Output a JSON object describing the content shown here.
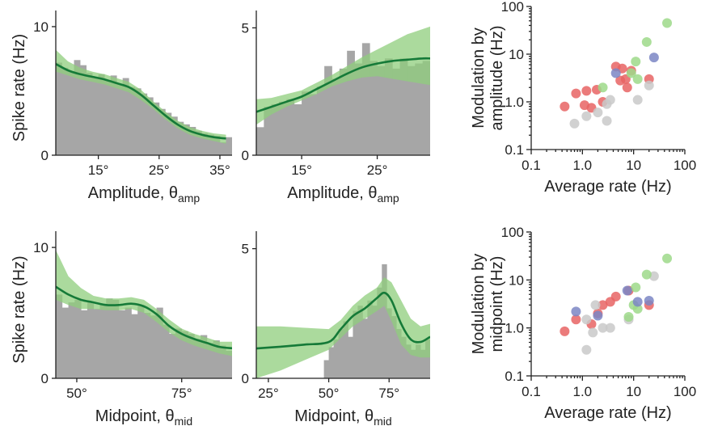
{
  "colors": {
    "histogram": "#a6a6a6",
    "band": "#8fce7c",
    "fit": "#157a38",
    "red": "#e86464",
    "green": "#9ed98a",
    "blue": "#7b86c4",
    "gray": "#c9c9c9"
  },
  "chart_data": [
    {
      "id": "amp-left",
      "type": "bar+line",
      "xlabel": "Amplitude, θ",
      "xlabel_sub": "amp",
      "ylabel": "Spike rate (Hz)",
      "xlim": [
        8,
        37
      ],
      "ylim": [
        0,
        10.5
      ],
      "xticks": [
        15,
        25,
        35
      ],
      "xtick_labels": [
        "15°",
        "25°",
        "35°"
      ],
      "yticks": [
        0,
        10
      ],
      "ytick_labels": [
        "0",
        "10"
      ],
      "hist_x": [
        8.5,
        9.5,
        10.5,
        11.5,
        12.5,
        13.5,
        14.5,
        15.5,
        16.5,
        17.5,
        18.5,
        19.5,
        20.5,
        21.5,
        22.5,
        23.5,
        24.5,
        25.5,
        26.5,
        27.5,
        28.5,
        29.5,
        30.5,
        31.5,
        32.5,
        33.5,
        34.5,
        35.5,
        36.5
      ],
      "hist_y": [
        7.2,
        6.8,
        6.5,
        7.4,
        7.0,
        6.4,
        6.1,
        6.3,
        5.8,
        6.2,
        5.5,
        6.0,
        5.3,
        5.2,
        4.8,
        4.5,
        4.1,
        3.6,
        3.3,
        3.0,
        2.6,
        2.4,
        2.2,
        1.9,
        1.7,
        1.6,
        1.5,
        1.0,
        1.4
      ],
      "fit_x": [
        8,
        10,
        12,
        14,
        16,
        18,
        20,
        22,
        24,
        26,
        28,
        30,
        32,
        34,
        36
      ],
      "fit_y": [
        7.1,
        6.6,
        6.3,
        6.1,
        5.9,
        5.6,
        5.3,
        4.7,
        3.9,
        3.1,
        2.4,
        1.9,
        1.6,
        1.4,
        1.3
      ],
      "band_lo": [
        6.5,
        6.2,
        5.9,
        5.7,
        5.5,
        5.2,
        4.9,
        4.3,
        3.6,
        2.8,
        2.1,
        1.6,
        1.3,
        1.1,
        0.9
      ],
      "band_hi": [
        8.2,
        7.3,
        6.8,
        6.5,
        6.3,
        6.0,
        5.7,
        5.1,
        4.2,
        3.4,
        2.7,
        2.2,
        1.9,
        1.7,
        1.6
      ]
    },
    {
      "id": "amp-right",
      "type": "bar+line",
      "xlabel": "Amplitude, θ",
      "xlabel_sub": "amp",
      "ylabel": "",
      "xlim": [
        9,
        32
      ],
      "ylim": [
        0,
        5.3
      ],
      "xticks": [
        15,
        25
      ],
      "xtick_labels": [
        "15°",
        "25°"
      ],
      "yticks": [
        0,
        5
      ],
      "ytick_labels": [
        "0",
        "5"
      ],
      "hist_x": [
        9.5,
        10.5,
        11.5,
        12.5,
        13.5,
        14.5,
        15.5,
        16.5,
        17.5,
        18.5,
        19.5,
        20.5,
        21.5,
        22.5,
        23.5,
        24.5,
        25.5,
        26.5,
        27.5,
        28.5,
        29.5,
        30.5,
        31.5
      ],
      "hist_y": [
        1.1,
        1.9,
        2.0,
        2.1,
        2.2,
        2.0,
        2.5,
        2.4,
        2.7,
        3.5,
        3.0,
        3.4,
        4.1,
        3.6,
        4.4,
        3.7,
        3.5,
        3.8,
        3.4,
        3.8,
        3.5,
        3.6,
        3.7
      ],
      "fit_x": [
        9,
        11,
        13,
        15,
        17,
        19,
        21,
        23,
        25,
        27,
        29,
        31,
        32
      ],
      "fit_y": [
        1.7,
        1.9,
        2.1,
        2.3,
        2.6,
        2.9,
        3.2,
        3.45,
        3.6,
        3.7,
        3.75,
        3.8,
        3.8
      ],
      "band_lo": [
        1.2,
        1.6,
        1.9,
        2.15,
        2.4,
        2.7,
        2.9,
        3.05,
        3.1,
        3.0,
        2.9,
        2.8,
        2.75
      ],
      "band_hi": [
        2.2,
        2.25,
        2.4,
        2.55,
        2.85,
        3.15,
        3.5,
        3.85,
        4.15,
        4.45,
        4.75,
        4.95,
        5.05
      ]
    },
    {
      "id": "scatter-amp",
      "type": "scatter",
      "scale": "log",
      "xlabel": "Average rate (Hz)",
      "ylabel": "Modulation by",
      "ylabel2": "amplitude (Hz)",
      "xlim": [
        0.1,
        100
      ],
      "ylim": [
        0.1,
        100
      ],
      "ticks": [
        0.1,
        1,
        10,
        100
      ],
      "xtick_labels": [
        "0.1",
        "1.0",
        "10",
        "100"
      ],
      "ytick_labels": [
        "0.1",
        "1.0",
        "10",
        "100"
      ],
      "points": [
        {
          "x": 0.45,
          "y": 0.8,
          "c": "red"
        },
        {
          "x": 0.75,
          "y": 1.5,
          "c": "red"
        },
        {
          "x": 1.1,
          "y": 0.85,
          "c": "red"
        },
        {
          "x": 1.2,
          "y": 1.7,
          "c": "red"
        },
        {
          "x": 1.5,
          "y": 0.75,
          "c": "red"
        },
        {
          "x": 1.9,
          "y": 1.8,
          "c": "red"
        },
        {
          "x": 2.5,
          "y": 1.0,
          "c": "red"
        },
        {
          "x": 4.5,
          "y": 5.5,
          "c": "red"
        },
        {
          "x": 5.5,
          "y": 2.8,
          "c": "red"
        },
        {
          "x": 6.0,
          "y": 5.0,
          "c": "red"
        },
        {
          "x": 7.0,
          "y": 3.0,
          "c": "red"
        },
        {
          "x": 7.5,
          "y": 2.0,
          "c": "red"
        },
        {
          "x": 9.0,
          "y": 4.5,
          "c": "red"
        },
        {
          "x": 20.0,
          "y": 3.0,
          "c": "red"
        },
        {
          "x": 0.7,
          "y": 0.35,
          "c": "gray"
        },
        {
          "x": 1.2,
          "y": 0.5,
          "c": "gray"
        },
        {
          "x": 2.0,
          "y": 0.6,
          "c": "gray"
        },
        {
          "x": 3.0,
          "y": 0.9,
          "c": "gray"
        },
        {
          "x": 3.5,
          "y": 1.1,
          "c": "gray"
        },
        {
          "x": 3.0,
          "y": 0.4,
          "c": "gray"
        },
        {
          "x": 12.0,
          "y": 1.1,
          "c": "gray"
        },
        {
          "x": 20.0,
          "y": 2.2,
          "c": "gray"
        },
        {
          "x": 2.5,
          "y": 2.0,
          "c": "green"
        },
        {
          "x": 9.0,
          "y": 4.0,
          "c": "green"
        },
        {
          "x": 11.0,
          "y": 7.0,
          "c": "green"
        },
        {
          "x": 12.0,
          "y": 3.0,
          "c": "green"
        },
        {
          "x": 18.0,
          "y": 18.0,
          "c": "green"
        },
        {
          "x": 45.0,
          "y": 45.0,
          "c": "green"
        },
        {
          "x": 4.5,
          "y": 4.0,
          "c": "blue"
        },
        {
          "x": 25.0,
          "y": 8.5,
          "c": "blue"
        }
      ]
    },
    {
      "id": "mid-left",
      "type": "bar+line",
      "xlabel": "Midpoint, θ",
      "xlabel_sub": "mid",
      "ylabel": "Spike rate (Hz)",
      "xlim": [
        45,
        87
      ],
      "ylim": [
        0,
        10.5
      ],
      "xticks": [
        50,
        75
      ],
      "xtick_labels": [
        "50°",
        "75°"
      ],
      "yticks": [
        0,
        10
      ],
      "ytick_labels": [
        "0",
        "10"
      ],
      "hist_x": [
        45.75,
        47.25,
        48.75,
        50.25,
        51.75,
        53.25,
        54.75,
        56.25,
        57.75,
        59.25,
        60.75,
        62.25,
        63.75,
        65.25,
        66.75,
        68.25,
        69.75,
        71.25,
        72.75,
        74.25,
        75.75,
        77.25,
        78.75,
        80.25,
        81.75,
        83.25,
        84.75,
        86.25
      ],
      "hist_y": [
        6.4,
        5.4,
        5.8,
        6.0,
        5.2,
        5.8,
        5.3,
        5.7,
        6.1,
        6.0,
        5.2,
        5.4,
        4.9,
        5.6,
        5.0,
        4.8,
        5.4,
        4.1,
        3.4,
        3.8,
        3.6,
        3.4,
        3.0,
        3.3,
        2.7,
        2.9,
        2.5,
        2.1
      ],
      "fit_x": [
        45,
        48,
        51,
        54,
        57,
        60,
        63,
        66,
        69,
        72,
        75,
        78,
        81,
        84,
        87
      ],
      "fit_y": [
        7.0,
        6.4,
        6.0,
        5.8,
        5.6,
        5.6,
        5.7,
        5.5,
        4.9,
        4.0,
        3.4,
        3.0,
        2.7,
        2.4,
        2.3
      ],
      "band_lo": [
        6.0,
        5.6,
        5.3,
        5.3,
        5.2,
        5.2,
        5.3,
        5.0,
        4.3,
        3.5,
        2.9,
        2.5,
        2.2,
        1.9,
        1.7
      ],
      "band_hi": [
        9.8,
        7.8,
        6.9,
        6.3,
        6.1,
        6.1,
        6.2,
        6.0,
        5.3,
        4.5,
        3.8,
        3.4,
        3.1,
        2.8,
        2.8
      ]
    },
    {
      "id": "mid-right",
      "type": "bar+line",
      "xlabel": "Midpoint, θ",
      "xlabel_sub": "mid",
      "ylabel": "",
      "xlim": [
        20,
        92
      ],
      "ylim": [
        0,
        5.3
      ],
      "xticks": [
        25,
        50,
        75
      ],
      "xtick_labels": [
        "25°",
        "50°",
        "75°"
      ],
      "yticks": [
        0,
        5
      ],
      "ytick_labels": [
        "0",
        "5"
      ],
      "hist_x": [
        49,
        51,
        53,
        55,
        57,
        59,
        61,
        63,
        65,
        67,
        69,
        71,
        73,
        75,
        77,
        79,
        81,
        83,
        85,
        87,
        89,
        91
      ],
      "hist_y": [
        0.7,
        1.2,
        1.5,
        1.9,
        2.2,
        1.6,
        2.6,
        2.8,
        2.3,
        3.0,
        2.8,
        3.5,
        4.4,
        2.7,
        2.4,
        1.9,
        1.6,
        1.3,
        1.1,
        1.3,
        1.1,
        1.5
      ],
      "fit_x": [
        20,
        30,
        40,
        50,
        55,
        60,
        65,
        70,
        73,
        76,
        80,
        84,
        88,
        92
      ],
      "fit_y": [
        1.15,
        1.22,
        1.3,
        1.4,
        1.9,
        2.4,
        2.7,
        3.1,
        3.3,
        3.0,
        2.1,
        1.5,
        1.4,
        1.6
      ],
      "band_lo": [
        0.0,
        0.3,
        0.7,
        1.1,
        1.55,
        2.0,
        2.3,
        2.6,
        2.8,
        2.2,
        1.3,
        0.9,
        0.8,
        0.8
      ],
      "band_hi": [
        2.0,
        2.0,
        1.95,
        1.9,
        2.25,
        2.8,
        3.2,
        3.5,
        3.9,
        3.7,
        3.0,
        2.3,
        2.0,
        2.1
      ]
    },
    {
      "id": "scatter-mid",
      "type": "scatter",
      "scale": "log",
      "xlabel": "Average rate (Hz)",
      "ylabel": "Modulation by",
      "ylabel2": "midpoint (Hz)",
      "xlim": [
        0.1,
        100
      ],
      "ylim": [
        0.1,
        100
      ],
      "ticks": [
        0.1,
        1,
        10,
        100
      ],
      "xtick_labels": [
        "0.1",
        "1.0",
        "10",
        "100"
      ],
      "ytick_labels": [
        "0.1",
        "1.0",
        "10",
        "100"
      ],
      "points": [
        {
          "x": 0.45,
          "y": 0.85,
          "c": "red"
        },
        {
          "x": 0.75,
          "y": 1.5,
          "c": "red"
        },
        {
          "x": 1.5,
          "y": 1.2,
          "c": "red"
        },
        {
          "x": 2.0,
          "y": 2.0,
          "c": "red"
        },
        {
          "x": 2.5,
          "y": 3.0,
          "c": "red"
        },
        {
          "x": 3.5,
          "y": 3.5,
          "c": "red"
        },
        {
          "x": 4.5,
          "y": 4.5,
          "c": "red"
        },
        {
          "x": 8.0,
          "y": 6.0,
          "c": "red"
        },
        {
          "x": 20.0,
          "y": 3.0,
          "c": "red"
        },
        {
          "x": 1.2,
          "y": 0.35,
          "c": "gray"
        },
        {
          "x": 1.2,
          "y": 1.5,
          "c": "gray"
        },
        {
          "x": 1.6,
          "y": 0.8,
          "c": "gray"
        },
        {
          "x": 1.8,
          "y": 3.0,
          "c": "gray"
        },
        {
          "x": 2.5,
          "y": 1.0,
          "c": "gray"
        },
        {
          "x": 3.5,
          "y": 1.0,
          "c": "gray"
        },
        {
          "x": 8.0,
          "y": 1.5,
          "c": "gray"
        },
        {
          "x": 25.0,
          "y": 12.0,
          "c": "gray"
        },
        {
          "x": 8.0,
          "y": 1.7,
          "c": "green"
        },
        {
          "x": 10.0,
          "y": 3.0,
          "c": "green"
        },
        {
          "x": 11.0,
          "y": 7.0,
          "c": "green"
        },
        {
          "x": 12.0,
          "y": 2.5,
          "c": "green"
        },
        {
          "x": 18.0,
          "y": 13.0,
          "c": "green"
        },
        {
          "x": 45.0,
          "y": 28.0,
          "c": "green"
        },
        {
          "x": 0.75,
          "y": 2.2,
          "c": "blue"
        },
        {
          "x": 2.0,
          "y": 1.8,
          "c": "blue"
        },
        {
          "x": 7.5,
          "y": 6.0,
          "c": "blue"
        },
        {
          "x": 12.0,
          "y": 3.5,
          "c": "blue"
        },
        {
          "x": 20.0,
          "y": 3.7,
          "c": "blue"
        }
      ]
    }
  ]
}
